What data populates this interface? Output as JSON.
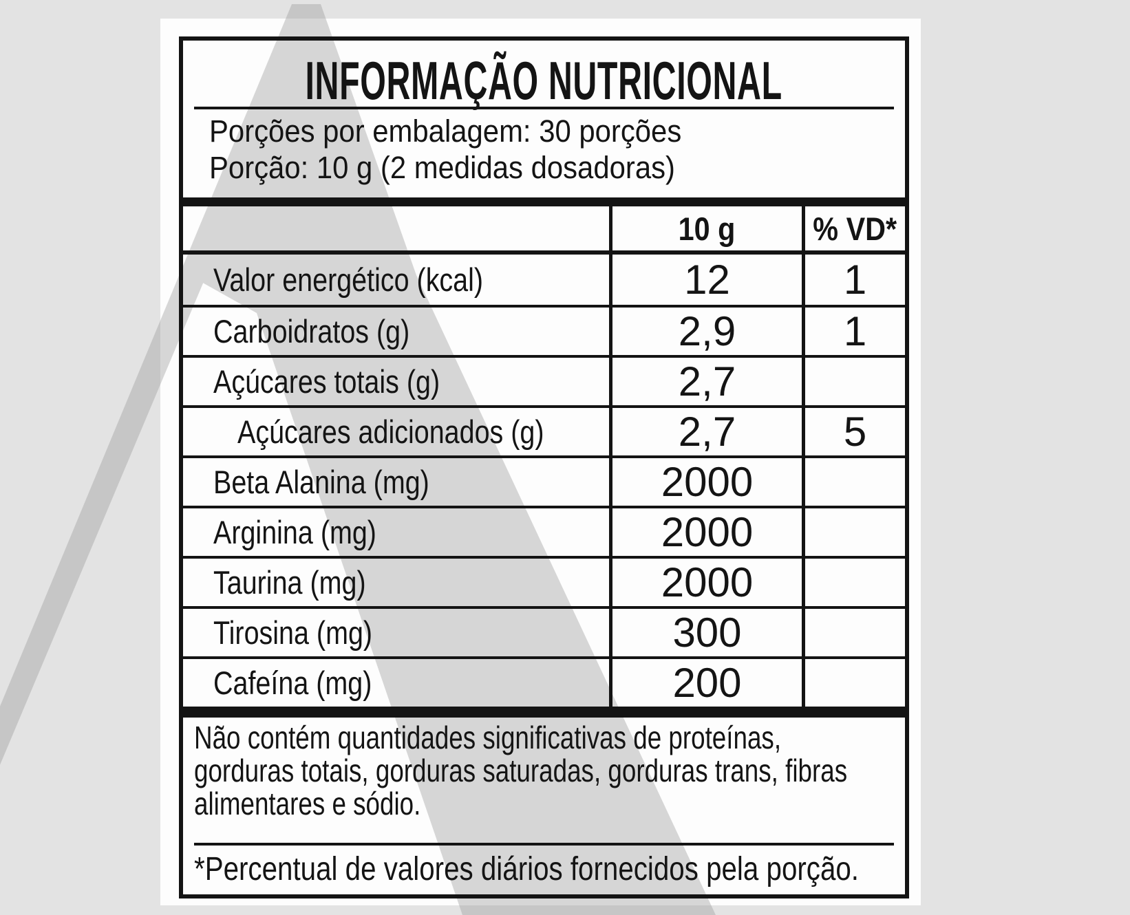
{
  "title": "INFORMAÇÃO NUTRICIONAL",
  "servings": {
    "per_package": "Porções por embalagem: 30 porções",
    "portion": "Porção: 10 g (2 medidas dosadoras)"
  },
  "table": {
    "amount_header": "10 g",
    "dv_header": "% VD*",
    "rows": [
      {
        "label": "Valor energético (kcal)",
        "amount": "12",
        "dv": "1",
        "indent": false
      },
      {
        "label": "Carboidratos (g)",
        "amount": "2,9",
        "dv": "1",
        "indent": false
      },
      {
        "label": "Açúcares totais (g)",
        "amount": "2,7",
        "dv": "",
        "indent": false
      },
      {
        "label": "Açúcares adicionados (g)",
        "amount": "2,7",
        "dv": "5",
        "indent": true
      },
      {
        "label": "Beta Alanina (mg)",
        "amount": "2000",
        "dv": "",
        "indent": false
      },
      {
        "label": "Arginina (mg)",
        "amount": "2000",
        "dv": "",
        "indent": false
      },
      {
        "label": "Taurina (mg)",
        "amount": "2000",
        "dv": "",
        "indent": false
      },
      {
        "label": "Tirosina (mg)",
        "amount": "300",
        "dv": "",
        "indent": false
      },
      {
        "label": "Cafeína (mg)",
        "amount": "200",
        "dv": "",
        "indent": false
      }
    ]
  },
  "note": {
    "lines": [
      "Não contém quantidades significativas de proteínas,",
      "gorduras totais, gorduras saturadas, gorduras trans, fibras",
      "alimentares e sódio."
    ]
  },
  "footnote": "*Percentual de valores diários fornecidos pela porção.",
  "colors": {
    "background": "#e3e3e3",
    "paper": "#fdfdfd",
    "ink": "#141414",
    "watermark_gray": "#9c9c9c"
  }
}
